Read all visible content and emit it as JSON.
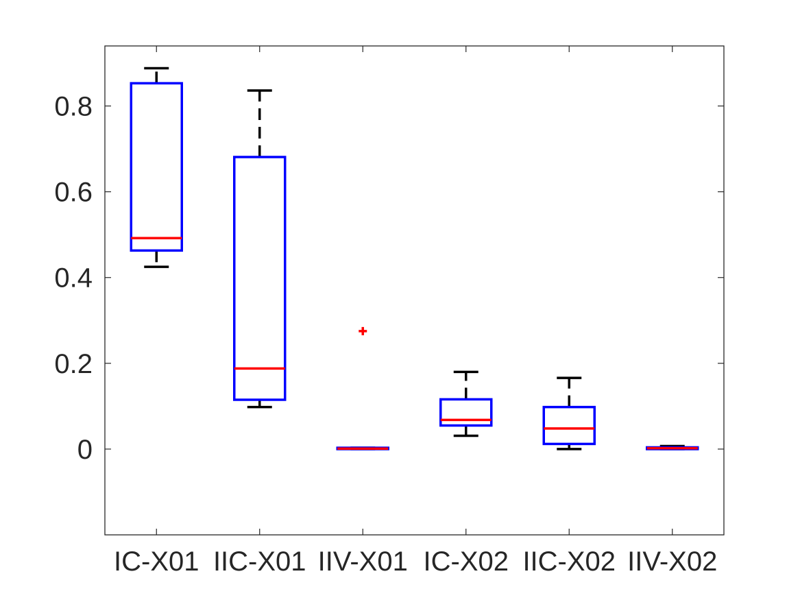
{
  "chart_data": {
    "type": "box",
    "title": "",
    "xlabel": "",
    "ylabel": "",
    "ylim": [
      -0.2,
      0.94
    ],
    "yticks": [
      0,
      0.2,
      0.4,
      0.6,
      0.8
    ],
    "ytick_labels": [
      "0",
      "0.2",
      "0.4",
      "0.6",
      "0.8"
    ],
    "grid": false,
    "categories": [
      "IC-X01",
      "IIC-X01",
      "IIV-X01",
      "IC-X02",
      "IIC-X02",
      "IIV-X02"
    ],
    "boxes": [
      {
        "category": "IC-X01",
        "whisker_low": 0.425,
        "q1": 0.463,
        "median": 0.492,
        "q3": 0.853,
        "whisker_high": 0.888,
        "outliers": []
      },
      {
        "category": "IIC-X01",
        "whisker_low": 0.098,
        "q1": 0.115,
        "median": 0.188,
        "q3": 0.681,
        "whisker_high": 0.836,
        "outliers": []
      },
      {
        "category": "IIV-X01",
        "whisker_low": 0.0,
        "q1": 0.0,
        "median": 0.001,
        "q3": 0.003,
        "whisker_high": 0.003,
        "outliers": [
          0.275
        ]
      },
      {
        "category": "IC-X02",
        "whisker_low": 0.031,
        "q1": 0.055,
        "median": 0.068,
        "q3": 0.116,
        "whisker_high": 0.18,
        "outliers": []
      },
      {
        "category": "IIC-X02",
        "whisker_low": 0.0,
        "q1": 0.012,
        "median": 0.048,
        "q3": 0.098,
        "whisker_high": 0.166,
        "outliers": []
      },
      {
        "category": "IIV-X02",
        "whisker_low": 0.0,
        "q1": 0.0,
        "median": 0.002,
        "q3": 0.004,
        "whisker_high": 0.007,
        "outliers": []
      }
    ],
    "colors": {
      "box": "#0000ff",
      "median": "#ff0000",
      "whisker": "#000000",
      "outlier": "#ff0000",
      "axis": "#262626"
    }
  }
}
